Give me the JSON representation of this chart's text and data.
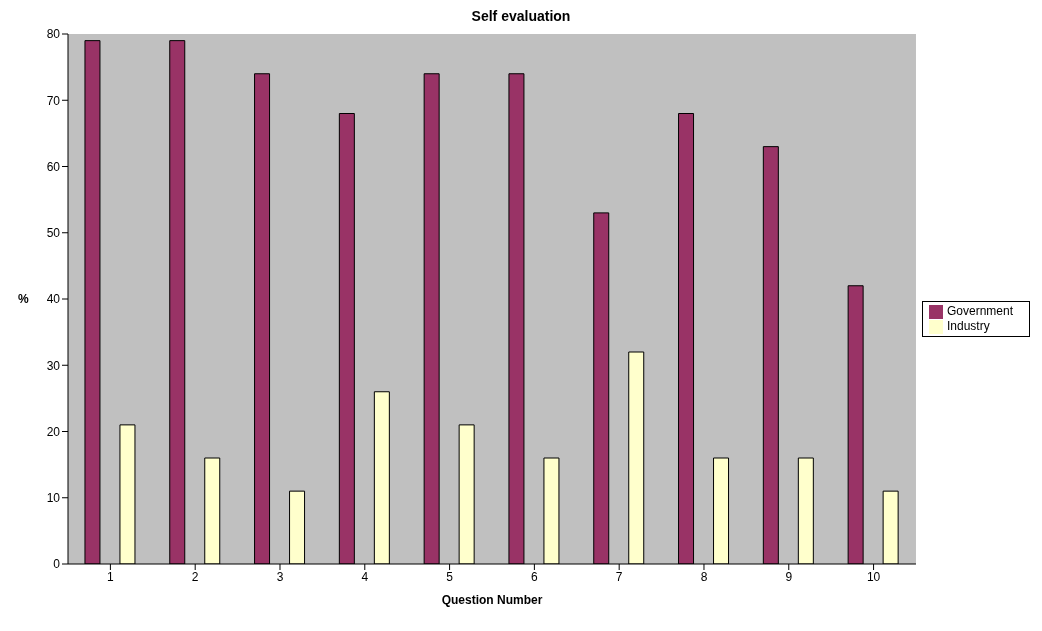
{
  "chart_data": {
    "type": "bar",
    "title": "Self evaluation",
    "xlabel": "Question Number",
    "ylabel": "%",
    "categories": [
      "1",
      "2",
      "3",
      "4",
      "5",
      "6",
      "7",
      "8",
      "9",
      "10"
    ],
    "series": [
      {
        "name": "Government",
        "color": "#993366",
        "values": [
          79,
          79,
          74,
          68,
          74,
          74,
          53,
          68,
          63,
          42
        ]
      },
      {
        "name": "Industry",
        "color": "#ffffcc",
        "values": [
          21,
          16,
          11,
          26,
          21,
          16,
          32,
          16,
          16,
          11
        ]
      }
    ],
    "ylim": [
      0,
      80
    ],
    "yticks": [
      0,
      10,
      20,
      30,
      40,
      50,
      60,
      70,
      80
    ],
    "grid": false,
    "legend": "right"
  }
}
